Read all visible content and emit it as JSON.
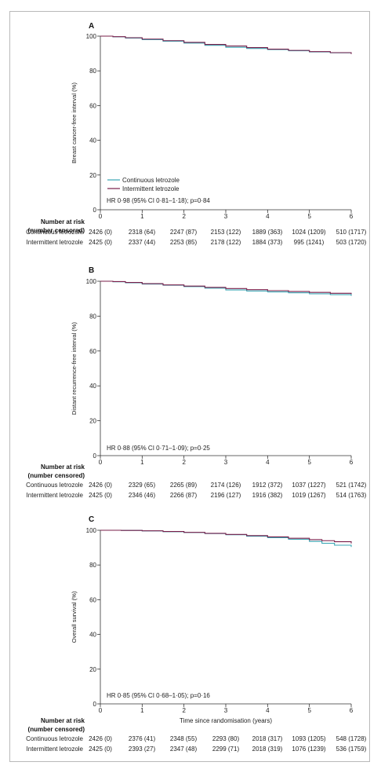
{
  "chart_data": [
    {
      "type": "line",
      "panel_label": "A",
      "ylabel": "Breast cancer-free interval (%)",
      "xlabel": "",
      "xlim": [
        0,
        6
      ],
      "ylim": [
        0,
        100
      ],
      "x_ticks": [
        "0",
        "1",
        "2",
        "3",
        "4",
        "5",
        "6"
      ],
      "y_ticks": [
        "0",
        "20",
        "40",
        "60",
        "80",
        "100"
      ],
      "series": [
        {
          "name": "Continuous letrozole",
          "color": "#3aa6b4",
          "x": [
            0,
            0.3,
            0.6,
            1,
            1.5,
            2,
            2.5,
            3,
            3.5,
            4,
            4.5,
            5,
            5.5,
            6
          ],
          "y": [
            100,
            99.6,
            98.9,
            98,
            97.1,
            96,
            94.7,
            93.6,
            92.9,
            92.3,
            91.6,
            90.9,
            90.4,
            90
          ]
        },
        {
          "name": "Intermittent letrozole",
          "color": "#7a1f4a",
          "x": [
            0,
            0.3,
            0.6,
            1,
            1.5,
            2,
            2.5,
            3,
            3.5,
            4,
            4.5,
            5,
            5.5,
            6
          ],
          "y": [
            100,
            99.7,
            99.1,
            98.3,
            97.4,
            96.4,
            95.2,
            94.3,
            93.4,
            92.5,
            91.8,
            91.1,
            90.5,
            89.7
          ]
        }
      ],
      "legend": [
        "Continuous letrozole",
        "Intermittent letrozole"
      ],
      "annotation": "HR 0·98 (95% CI 0·81–1·18); p=0·84",
      "risk_table": {
        "header": [
          "Number at risk",
          "(number censored)"
        ],
        "rows": [
          {
            "label": "Continuous letrozole",
            "values": [
              "2426 (0)",
              "2318 (64)",
              "2247 (87)",
              "2153 (122)",
              "1889 (363)",
              "1024 (1209)",
              "510 (1717)"
            ]
          },
          {
            "label": "Intermittent letrozole",
            "values": [
              "2425 (0)",
              "2337 (44)",
              "2253 (85)",
              "2178 (122)",
              "1884 (373)",
              "995 (1241)",
              "503 (1720)"
            ]
          }
        ]
      }
    },
    {
      "type": "line",
      "panel_label": "B",
      "ylabel": "Distant recurrence-free interval (%)",
      "xlabel": "",
      "xlim": [
        0,
        6
      ],
      "ylim": [
        0,
        100
      ],
      "x_ticks": [
        "0",
        "1",
        "2",
        "3",
        "4",
        "5",
        "6"
      ],
      "y_ticks": [
        "0",
        "20",
        "40",
        "60",
        "80",
        "100"
      ],
      "series": [
        {
          "name": "Continuous letrozole",
          "color": "#3aa6b4",
          "x": [
            0,
            0.3,
            0.6,
            1,
            1.5,
            2,
            2.5,
            3,
            3.5,
            4,
            4.5,
            5,
            5.5,
            6
          ],
          "y": [
            100,
            99.7,
            99.1,
            98.4,
            97.7,
            96.9,
            96,
            95,
            94.4,
            93.9,
            93.4,
            92.8,
            92.3,
            91.6
          ]
        },
        {
          "name": "Intermittent letrozole",
          "color": "#7a1f4a",
          "x": [
            0,
            0.3,
            0.6,
            1,
            1.5,
            2,
            2.5,
            3,
            3.5,
            4,
            4.5,
            5,
            5.5,
            6
          ],
          "y": [
            100,
            99.8,
            99.3,
            98.6,
            97.9,
            97.2,
            96.5,
            95.8,
            95.2,
            94.6,
            94.1,
            93.6,
            93.1,
            92.6
          ]
        }
      ],
      "annotation": "HR 0·88 (95% CI 0·71–1·09); p=0·25",
      "risk_table": {
        "header": [
          "Number at risk",
          "(number censored)"
        ],
        "rows": [
          {
            "label": "Continuous letrozole",
            "values": [
              "2426 (0)",
              "2329 (65)",
              "2265 (89)",
              "2174 (126)",
              "1912 (372)",
              "1037 (1227)",
              "521 (1742)"
            ]
          },
          {
            "label": "Intermittent letrozole",
            "values": [
              "2425 (0)",
              "2346 (46)",
              "2266 (87)",
              "2196 (127)",
              "1916 (382)",
              "1019 (1267)",
              "514 (1763)"
            ]
          }
        ]
      }
    },
    {
      "type": "line",
      "panel_label": "C",
      "ylabel": "Overall survival (%)",
      "xlabel": "Time since randomisation (years)",
      "xlim": [
        0,
        6
      ],
      "ylim": [
        0,
        100
      ],
      "x_ticks": [
        "0",
        "1",
        "2",
        "3",
        "4",
        "5",
        "6"
      ],
      "y_ticks": [
        "0",
        "20",
        "40",
        "60",
        "80",
        "100"
      ],
      "series": [
        {
          "name": "Continuous letrozole",
          "color": "#3aa6b4",
          "x": [
            0,
            0.5,
            1,
            1.5,
            2,
            2.5,
            3,
            3.5,
            4,
            4.5,
            5,
            5.3,
            5.6,
            6
          ],
          "y": [
            100,
            99.9,
            99.6,
            99.2,
            98.7,
            98.1,
            97.4,
            96.6,
            95.7,
            94.8,
            93.6,
            92.5,
            91.4,
            90.4
          ]
        },
        {
          "name": "Intermittent letrozole",
          "color": "#7a1f4a",
          "x": [
            0,
            0.5,
            1,
            1.5,
            2,
            2.5,
            3,
            3.5,
            4,
            4.5,
            5,
            5.3,
            5.6,
            6
          ],
          "y": [
            100,
            99.9,
            99.7,
            99.3,
            98.8,
            98.2,
            97.6,
            96.9,
            96.2,
            95.4,
            94.6,
            94,
            93.4,
            92.4
          ]
        }
      ],
      "annotation": "HR 0·85 (95% CI 0·68–1·05); p=0·16",
      "risk_table": {
        "header": [
          "Number at risk",
          "(number censored)"
        ],
        "rows": [
          {
            "label": "Continuous letrozole",
            "values": [
              "2426 (0)",
              "2376 (41)",
              "2348 (55)",
              "2293 (80)",
              "2018 (317)",
              "1093 (1205)",
              "548 (1728)"
            ]
          },
          {
            "label": "Intermittent letrozole",
            "values": [
              "2425 (0)",
              "2393 (27)",
              "2347 (48)",
              "2299 (71)",
              "2018 (319)",
              "1076 (1239)",
              "536 (1759)"
            ]
          }
        ]
      }
    }
  ]
}
